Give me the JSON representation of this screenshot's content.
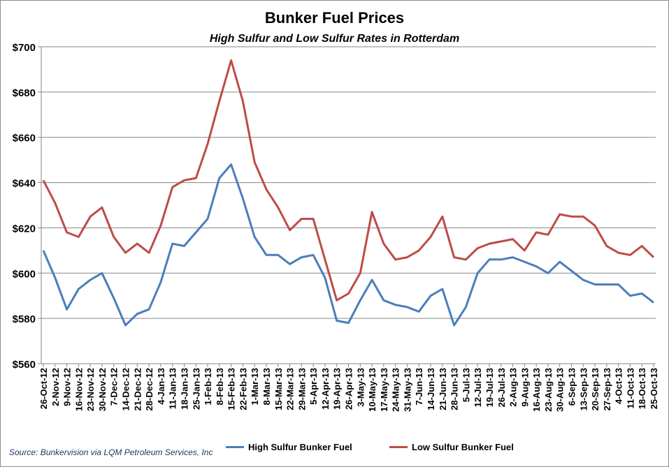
{
  "chart_data": {
    "type": "line",
    "title": "Bunker Fuel Prices",
    "subtitle": "High Sulfur and Low Sulfur Rates in Rotterdam",
    "source": "Source: Bunkervision via LQM Petroleum Services, Inc",
    "ylim": [
      560,
      700
    ],
    "yticks": [
      "$560",
      "$580",
      "$600",
      "$620",
      "$640",
      "$660",
      "$680",
      "$700"
    ],
    "ytick_values": [
      560,
      580,
      600,
      620,
      640,
      660,
      680,
      700
    ],
    "grid": true,
    "legend_position": "bottom",
    "categories": [
      "26-Oct-12",
      "2-Nov-12",
      "9-Nov-12",
      "16-Nov-12",
      "23-Nov-12",
      "30-Nov-12",
      "7-Dec-12",
      "14-Dec-12",
      "21-Dec-12",
      "28-Dec-12",
      "4-Jan-13",
      "11-Jan-13",
      "18-Jan-13",
      "25-Jan-13",
      "1-Feb-13",
      "8-Feb-13",
      "15-Feb-13",
      "22-Feb-13",
      "1-Mar-13",
      "8-Mar-13",
      "15-Mar-13",
      "22-Mar-13",
      "29-Mar-13",
      "5-Apr-13",
      "12-Apr-13",
      "19-Apr-13",
      "26-Apr-13",
      "3-May-13",
      "10-May-13",
      "17-May-13",
      "24-May-13",
      "31-May-13",
      "7-Jun-13",
      "14-Jun-13",
      "21-Jun-13",
      "28-Jun-13",
      "5-Jul-13",
      "12-Jul-13",
      "19-Jul-13",
      "26-Jul-13",
      "2-Aug-13",
      "9-Aug-13",
      "16-Aug-13",
      "23-Aug-13",
      "30-Aug-13",
      "6-Sep-13",
      "13-Sep-13",
      "20-Sep-13",
      "27-Sep-13",
      "4-Oct-13",
      "11-Oct-13",
      "18-Oct-13",
      "25-Oct-13"
    ],
    "series": [
      {
        "name": "High Sulfur Bunker Fuel",
        "color": "#4a7ebb",
        "values": [
          610,
          598,
          584,
          593,
          597,
          600,
          589,
          577,
          582,
          584,
          596,
          613,
          612,
          618,
          624,
          642,
          648,
          633,
          616,
          608,
          608,
          604,
          607,
          608,
          598,
          579,
          578,
          588,
          597,
          588,
          586,
          585,
          583,
          590,
          593,
          577,
          585,
          600,
          606,
          606,
          607,
          605,
          603,
          600,
          605,
          601,
          597,
          595,
          595,
          595,
          590,
          591,
          587
        ]
      },
      {
        "name": "Low Sulfur Bunker Fuel",
        "color": "#be4b48",
        "values": [
          641,
          631,
          618,
          616,
          625,
          629,
          616,
          609,
          613,
          609,
          621,
          638,
          641,
          642,
          657,
          676,
          694,
          676,
          649,
          637,
          629,
          619,
          624,
          624,
          606,
          588,
          591,
          600,
          627,
          613,
          606,
          607,
          610,
          616,
          625,
          607,
          606,
          611,
          613,
          614,
          615,
          610,
          618,
          617,
          626,
          625,
          625,
          621,
          612,
          609,
          608,
          612,
          607
        ]
      }
    ]
  }
}
